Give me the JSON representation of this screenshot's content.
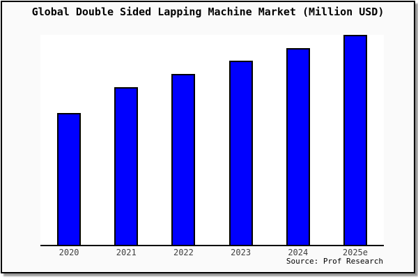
{
  "chart_data": {
    "type": "bar",
    "title": "Global Double Sided Lapping Machine Market (Million USD)",
    "categories": [
      "2020",
      "2021",
      "2022",
      "2023",
      "2024",
      "2025e"
    ],
    "values": [
      62.8,
      75.1,
      81.4,
      87.7,
      93.7,
      100
    ],
    "value_note": "relative bar heights as % of tallest bar (2025e); no y-axis scale is shown in the figure",
    "xlabel": "",
    "ylabel": "",
    "ylim": [
      0,
      100
    ],
    "grid": false,
    "legend": false,
    "source": "Source: Prof Research",
    "colors": {
      "bar_fill": "#0000ff",
      "bar_edge": "#000000",
      "plot_background": "#ffffff",
      "figure_background": "#fafafa",
      "frame_border": "#000000",
      "shadow": "#999999",
      "title_text": "#000000",
      "tick_label_text": "#404040",
      "source_text": "#000000"
    }
  }
}
